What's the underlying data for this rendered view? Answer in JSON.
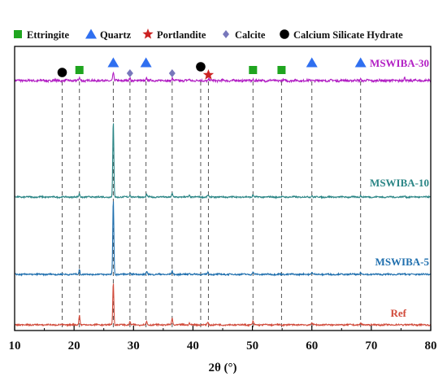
{
  "chart_data": {
    "type": "line",
    "title": "",
    "xlabel": "2θ (°)",
    "ylabel": "",
    "xlim": [
      10,
      80
    ],
    "x_ticks": [
      10,
      20,
      30,
      40,
      50,
      60,
      70,
      80
    ],
    "grid": false,
    "legend_position": "top",
    "legend": [
      {
        "name": "Ettringite",
        "marker": "square",
        "color": "#1fa51f"
      },
      {
        "name": "Quartz",
        "marker": "triangle",
        "color": "#2f6ff0"
      },
      {
        "name": "Portlandite",
        "marker": "star",
        "color": "#cc2222"
      },
      {
        "name": "Calcite",
        "marker": "diamond",
        "color": "#7777bb"
      },
      {
        "name": "Calcium Silicate Hydrate",
        "marker": "circle",
        "color": "#000000"
      }
    ],
    "series": [
      {
        "name": "MSWIBA-30",
        "color": "#b21fc4",
        "peaks": [
          [
            20.9,
            2
          ],
          [
            26.6,
            6
          ],
          [
            29.4,
            2
          ],
          [
            32.2,
            2
          ],
          [
            36.5,
            2
          ],
          [
            39.4,
            1
          ],
          [
            42.7,
            1
          ],
          [
            50.1,
            1
          ],
          [
            60.0,
            1
          ],
          [
            68.2,
            1.5
          ],
          [
            75.6,
            2
          ]
        ]
      },
      {
        "name": "MSWIBA-10",
        "color": "#2a8585",
        "peaks": [
          [
            20.9,
            4
          ],
          [
            26.6,
            92
          ],
          [
            29.4,
            3
          ],
          [
            32.2,
            3
          ],
          [
            36.5,
            4
          ],
          [
            39.4,
            2
          ],
          [
            42.5,
            2
          ],
          [
            50.1,
            3
          ],
          [
            60.0,
            2
          ],
          [
            68.2,
            2
          ],
          [
            75.6,
            1
          ]
        ]
      },
      {
        "name": "MSWIBA-5",
        "color": "#1f6fae",
        "peaks": [
          [
            20.9,
            6
          ],
          [
            26.6,
            92
          ],
          [
            29.4,
            2
          ],
          [
            32.2,
            3
          ],
          [
            36.5,
            4
          ],
          [
            39.4,
            2
          ],
          [
            42.5,
            2
          ],
          [
            50.1,
            3
          ],
          [
            60.0,
            3
          ],
          [
            68.2,
            2
          ],
          [
            75.6,
            1
          ]
        ]
      },
      {
        "name": "Ref",
        "color": "#d14a3a",
        "peaks": [
          [
            20.9,
            12
          ],
          [
            26.6,
            52
          ],
          [
            29.4,
            4
          ],
          [
            32.2,
            4
          ],
          [
            36.5,
            8
          ],
          [
            39.4,
            2
          ],
          [
            42.5,
            3
          ],
          [
            50.1,
            4
          ],
          [
            60.0,
            3
          ],
          [
            68.2,
            2
          ],
          [
            75.6,
            1
          ]
        ]
      }
    ],
    "markers": [
      {
        "phase": "Calcium Silicate Hydrate",
        "x": 18.0
      },
      {
        "phase": "Ettringite",
        "x": 20.9
      },
      {
        "phase": "Quartz",
        "x": 26.6
      },
      {
        "phase": "Calcite",
        "x": 29.4
      },
      {
        "phase": "Quartz",
        "x": 32.1
      },
      {
        "phase": "Calcite",
        "x": 36.5
      },
      {
        "phase": "Calcium Silicate Hydrate",
        "x": 41.3
      },
      {
        "phase": "Portlandite",
        "x": 42.6
      },
      {
        "phase": "Ettringite",
        "x": 50.1
      },
      {
        "phase": "Ettringite",
        "x": 54.9
      },
      {
        "phase": "Quartz",
        "x": 60.0
      },
      {
        "phase": "Quartz",
        "x": 68.2
      }
    ]
  }
}
